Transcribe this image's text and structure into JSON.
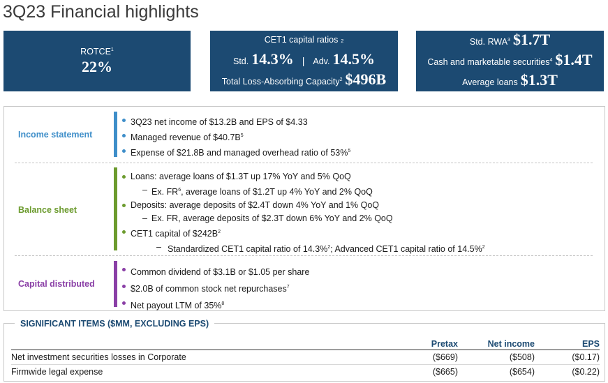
{
  "title": "3Q23 Financial highlights",
  "kpis": {
    "box1": {
      "label": "ROTCE",
      "label_fn": "1",
      "value": "22%"
    },
    "box2": {
      "heading": "CET1 capital ratios",
      "heading_fn": "2",
      "std_label": "Std.",
      "std_value": "14.3%",
      "sep": "|",
      "adv_label": "Adv.",
      "adv_value": "14.5%",
      "tlac_label": "Total Loss-Absorbing Capacity",
      "tlac_fn": "2",
      "tlac_value": "$496B"
    },
    "box3": {
      "rwa_label": "Std. RWA",
      "rwa_fn": "3",
      "rwa_value": "$1.7T",
      "cash_label": "Cash and marketable securities",
      "cash_fn": "4",
      "cash_value": "$1.4T",
      "loans_label": "Average loans",
      "loans_value": "$1.3T"
    }
  },
  "sections": {
    "income": {
      "label": "Income statement",
      "color": "#3e8ec9",
      "items": [
        {
          "text": "3Q23 net income of $13.2B and EPS of $4.33",
          "fn": ""
        },
        {
          "text": "Managed revenue of $40.7B",
          "fn": "5"
        },
        {
          "text": "Expense of $21.8B and managed overhead ratio of 53%",
          "fn": "5"
        }
      ]
    },
    "balance": {
      "label": "Balance sheet",
      "color": "#6c9b2e",
      "items": [
        {
          "text": "Loans: average loans of $1.3T up 17% YoY and 5% QoQ"
        },
        {
          "dash": "–",
          "text_a": "Ex. FR",
          "fn": "6",
          "text_b": ", average loans of $1.2T up 4% YoY and 2% QoQ"
        },
        {
          "text": "Deposits: average deposits of $2.4T down 4% YoY and 1% QoQ"
        },
        {
          "dash": "–",
          "text": "Ex. FR, average deposits of $2.3T down 6% YoY and 2% QoQ"
        },
        {
          "text": "CET1 capital of $242B",
          "fn": "2"
        },
        {
          "dash": "–",
          "text_a": "Standardized CET1 capital ratio of 14.3%",
          "fn_a": "2",
          "text_b": "; Advanced CET1 capital ratio of 14.5%",
          "fn_b": "2"
        }
      ]
    },
    "capital": {
      "label": "Capital distributed",
      "color": "#8a3fa6",
      "items": [
        {
          "text": "Common dividend of $3.1B or $1.05 per share",
          "fn": ""
        },
        {
          "text": "$2.0B of common stock net repurchases",
          "fn": "7"
        },
        {
          "text": "Net payout LTM of 35%",
          "fn": "8"
        }
      ]
    }
  },
  "significant": {
    "title": "SIGNIFICANT ITEMS ($MM, EXCLUDING EPS)",
    "headers": [
      "",
      "Pretax",
      "Net income",
      "EPS"
    ],
    "rows": [
      [
        "Net investment securities losses in Corporate",
        "($669)",
        "($508)",
        "($0.17)"
      ],
      [
        "Firmwide legal expense",
        "($665)",
        "($654)",
        "($0.22)"
      ]
    ]
  }
}
